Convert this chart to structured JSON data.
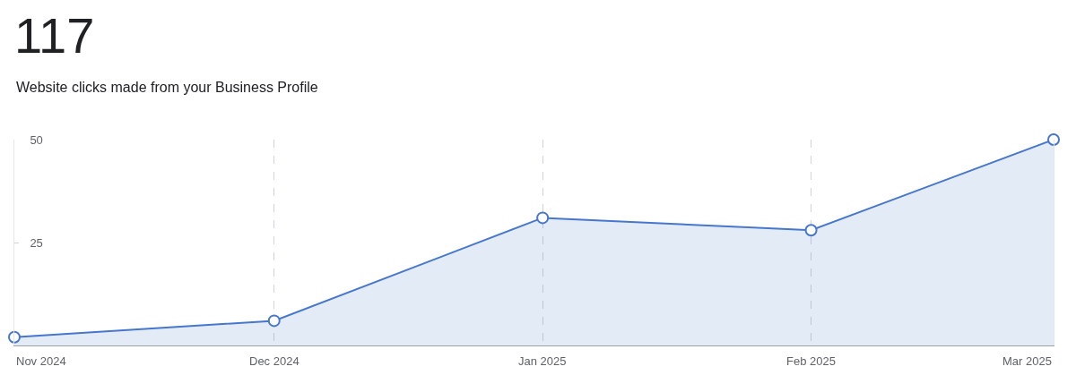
{
  "chart_data": {
    "type": "area",
    "title": "117",
    "subtitle": "Website clicks made from your Business Profile",
    "x": [
      "2024-11-01",
      "2024-12-01",
      "2025-01-01",
      "2025-02-01",
      "2025-03-01"
    ],
    "series": [
      {
        "color": "#4677cc",
        "values": [
          2,
          6,
          31,
          28,
          50
        ]
      }
    ],
    "xlim": [
      "2024-11-01",
      "2025-03-01"
    ],
    "xticks": [
      {
        "value": "2024-11-01",
        "label": "Nov 2024"
      },
      {
        "value": "2024-12-01",
        "label": "Dec 2024"
      },
      {
        "value": "2025-01-01",
        "label": "Jan 2025"
      },
      {
        "value": "2025-02-01",
        "label": "Feb 2025"
      },
      {
        "value": "2025-03-01",
        "label": "Mar 2025"
      }
    ],
    "ylim": [
      0,
      50
    ],
    "yticks": [
      25,
      50
    ],
    "grid": "x",
    "marker": "circle",
    "line_style": "solid"
  }
}
